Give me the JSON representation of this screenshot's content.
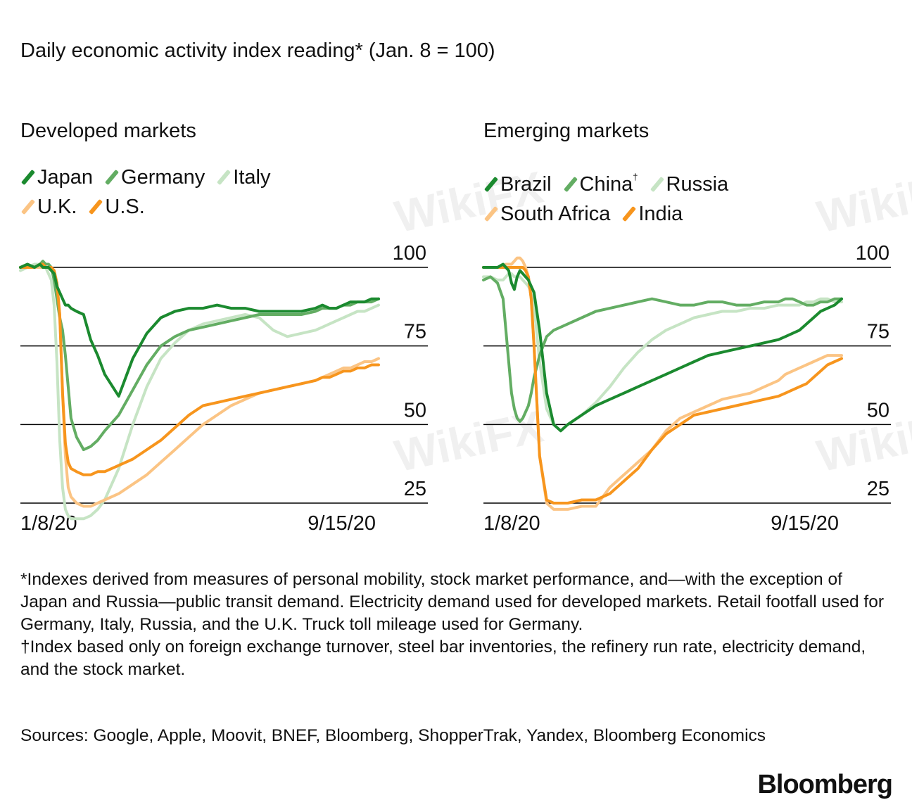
{
  "title": "Daily economic activity index reading* (Jan. 8 = 100)",
  "watermark": "WikiFX",
  "colors": {
    "japan": "#1b8a2f",
    "germany": "#63ad63",
    "italy": "#c6e4c4",
    "uk": "#fbc484",
    "us": "#f7951d",
    "gridline": "#000000"
  },
  "chart_data": [
    {
      "type": "line",
      "title": "Developed markets",
      "x_start": "1/8/20",
      "x_end": "9/15/20",
      "ylim": [
        20,
        100
      ],
      "yticks": [
        "100",
        "75",
        "50",
        "25"
      ],
      "series": [
        {
          "name": "Japan",
          "color": "#1b8a2f",
          "sup": "",
          "x": [
            0,
            5,
            10,
            14,
            16,
            18,
            20,
            22,
            24,
            26,
            28,
            30,
            32,
            34,
            36,
            40,
            45,
            50,
            55,
            60,
            70,
            80,
            90,
            100,
            110,
            120,
            130,
            140,
            150,
            160,
            170,
            180,
            190,
            200,
            210,
            215,
            220,
            225,
            230,
            235,
            240,
            245,
            250,
            255
          ],
          "y": [
            100,
            101,
            100,
            101,
            100,
            100,
            100,
            99,
            98,
            94,
            92,
            90,
            88,
            88,
            87,
            86,
            85,
            77,
            72,
            66,
            59,
            71,
            79,
            84,
            86,
            87,
            87,
            88,
            87,
            87,
            86,
            86,
            86,
            86,
            87,
            88,
            87,
            87,
            88,
            89,
            89,
            89,
            90,
            90
          ]
        },
        {
          "name": "Germany",
          "color": "#63ad63",
          "sup": "",
          "x": [
            0,
            5,
            10,
            14,
            16,
            18,
            20,
            22,
            24,
            26,
            28,
            30,
            32,
            34,
            36,
            40,
            45,
            50,
            55,
            60,
            70,
            80,
            90,
            100,
            110,
            120,
            130,
            140,
            150,
            160,
            170,
            180,
            190,
            200,
            210,
            215,
            220,
            225,
            230,
            235,
            240,
            245,
            250,
            255
          ],
          "y": [
            100,
            100,
            100,
            101,
            102,
            101,
            101,
            100,
            96,
            90,
            84,
            80,
            72,
            62,
            52,
            46,
            42,
            43,
            45,
            48,
            53,
            61,
            69,
            75,
            78,
            80,
            81,
            82,
            83,
            84,
            85,
            85,
            85,
            85,
            86,
            87,
            87,
            87,
            88,
            88,
            89,
            89,
            89,
            90
          ]
        },
        {
          "name": "Italy",
          "color": "#c6e4c4",
          "sup": "",
          "x": [
            0,
            5,
            10,
            14,
            16,
            18,
            20,
            22,
            24,
            26,
            28,
            30,
            32,
            34,
            36,
            40,
            45,
            50,
            55,
            60,
            70,
            80,
            90,
            100,
            110,
            120,
            130,
            140,
            150,
            160,
            170,
            180,
            190,
            200,
            210,
            215,
            220,
            225,
            230,
            235,
            240,
            245,
            250,
            255
          ],
          "y": [
            99,
            100,
            101,
            101,
            101,
            100,
            98,
            96,
            88,
            70,
            45,
            30,
            23,
            21,
            20,
            20,
            20,
            21,
            23,
            26,
            36,
            50,
            62,
            71,
            76,
            80,
            82,
            83,
            84,
            85,
            84,
            80,
            78,
            79,
            80,
            81,
            82,
            83,
            84,
            85,
            86,
            86,
            87,
            88
          ]
        },
        {
          "name": "U.K.",
          "color": "#fbc484",
          "sup": "",
          "x": [
            0,
            5,
            10,
            14,
            16,
            18,
            20,
            22,
            24,
            26,
            28,
            30,
            32,
            34,
            36,
            40,
            45,
            50,
            55,
            60,
            70,
            80,
            90,
            100,
            110,
            120,
            130,
            140,
            150,
            160,
            170,
            180,
            190,
            200,
            210,
            215,
            220,
            225,
            230,
            235,
            240,
            245,
            250,
            255
          ],
          "y": [
            100,
            100,
            100,
            100,
            100,
            100,
            100,
            100,
            99,
            95,
            85,
            60,
            40,
            30,
            27,
            25,
            24,
            24,
            25,
            26,
            28,
            31,
            34,
            38,
            42,
            46,
            50,
            53,
            56,
            58,
            60,
            61,
            62,
            63,
            64,
            65,
            66,
            67,
            68,
            68,
            69,
            70,
            70,
            71
          ]
        },
        {
          "name": "U.S.",
          "color": "#f7951d",
          "sup": "",
          "x": [
            0,
            5,
            10,
            14,
            16,
            18,
            20,
            22,
            24,
            26,
            28,
            30,
            32,
            34,
            36,
            40,
            45,
            50,
            55,
            60,
            70,
            80,
            90,
            100,
            110,
            120,
            130,
            140,
            150,
            160,
            170,
            180,
            190,
            200,
            210,
            215,
            220,
            225,
            230,
            235,
            240,
            245,
            250,
            255
          ],
          "y": [
            100,
            100,
            100,
            101,
            101,
            100,
            100,
            100,
            99,
            95,
            85,
            60,
            44,
            38,
            36,
            35,
            34,
            34,
            35,
            35,
            37,
            39,
            42,
            45,
            49,
            53,
            56,
            57,
            58,
            59,
            60,
            61,
            62,
            63,
            64,
            65,
            65,
            66,
            67,
            67,
            68,
            68,
            69,
            69
          ]
        }
      ]
    },
    {
      "type": "line",
      "title": "Emerging markets",
      "x_start": "1/8/20",
      "x_end": "9/15/20",
      "ylim": [
        20,
        100
      ],
      "yticks": [
        "100",
        "75",
        "50",
        "25"
      ],
      "series": [
        {
          "name": "Brazil",
          "color": "#1b8a2f",
          "sup": "",
          "x": [
            0,
            5,
            10,
            14,
            16,
            18,
            20,
            22,
            24,
            26,
            28,
            30,
            32,
            34,
            36,
            40,
            45,
            50,
            55,
            60,
            70,
            80,
            90,
            100,
            110,
            120,
            130,
            140,
            150,
            160,
            170,
            180,
            190,
            200,
            210,
            215,
            220,
            225,
            230,
            235,
            240,
            245,
            250,
            255
          ],
          "y": [
            100,
            100,
            100,
            101,
            100,
            99,
            95,
            93,
            97,
            99,
            98,
            97,
            96,
            94,
            92,
            80,
            60,
            50,
            48,
            50,
            53,
            56,
            58,
            60,
            62,
            64,
            66,
            68,
            70,
            72,
            73,
            74,
            75,
            76,
            77,
            78,
            79,
            80,
            82,
            84,
            86,
            87,
            88,
            90
          ]
        },
        {
          "name": "China",
          "color": "#63ad63",
          "sup": "†",
          "x": [
            0,
            5,
            10,
            14,
            16,
            18,
            20,
            22,
            24,
            26,
            28,
            30,
            32,
            34,
            36,
            40,
            45,
            50,
            55,
            60,
            70,
            80,
            90,
            100,
            110,
            120,
            130,
            140,
            150,
            160,
            170,
            180,
            190,
            200,
            210,
            215,
            220,
            225,
            230,
            235,
            240,
            245,
            250,
            255
          ],
          "y": [
            96,
            97,
            95,
            90,
            80,
            70,
            60,
            55,
            52,
            51,
            52,
            54,
            56,
            60,
            65,
            72,
            78,
            80,
            81,
            82,
            84,
            86,
            87,
            88,
            89,
            90,
            89,
            88,
            88,
            89,
            89,
            88,
            88,
            89,
            89,
            90,
            90,
            89,
            88,
            88,
            89,
            89,
            90,
            90
          ]
        },
        {
          "name": "Russia",
          "color": "#c6e4c4",
          "sup": "",
          "x": [
            0,
            5,
            10,
            14,
            16,
            18,
            20,
            22,
            24,
            26,
            28,
            30,
            32,
            34,
            36,
            40,
            45,
            50,
            55,
            60,
            70,
            80,
            90,
            100,
            110,
            120,
            130,
            140,
            150,
            160,
            170,
            180,
            190,
            200,
            210,
            215,
            220,
            225,
            230,
            235,
            240,
            245,
            250,
            255
          ],
          "y": [
            97,
            97,
            96,
            96,
            97,
            98,
            98,
            97,
            97,
            97,
            96,
            95,
            94,
            92,
            88,
            70,
            55,
            50,
            48,
            50,
            53,
            57,
            62,
            68,
            73,
            77,
            80,
            82,
            84,
            85,
            86,
            86,
            87,
            87,
            88,
            88,
            88,
            88,
            89,
            89,
            90,
            90,
            89,
            89
          ]
        },
        {
          "name": "South Africa",
          "color": "#fbc484",
          "sup": "",
          "x": [
            0,
            5,
            10,
            14,
            16,
            18,
            20,
            22,
            24,
            26,
            28,
            30,
            32,
            34,
            36,
            40,
            45,
            50,
            55,
            60,
            70,
            80,
            90,
            100,
            110,
            120,
            130,
            140,
            150,
            160,
            170,
            180,
            190,
            200,
            210,
            215,
            220,
            225,
            230,
            235,
            240,
            245,
            250,
            255
          ],
          "y": [
            100,
            100,
            100,
            100,
            101,
            101,
            101,
            102,
            103,
            103,
            102,
            100,
            97,
            90,
            75,
            40,
            25,
            23,
            23,
            23,
            24,
            24,
            30,
            34,
            38,
            42,
            48,
            52,
            54,
            56,
            58,
            59,
            60,
            62,
            64,
            66,
            67,
            68,
            69,
            70,
            71,
            72,
            72,
            72
          ]
        },
        {
          "name": "India",
          "color": "#f7951d",
          "sup": "",
          "x": [
            0,
            5,
            10,
            14,
            16,
            18,
            20,
            22,
            24,
            26,
            28,
            30,
            32,
            34,
            36,
            40,
            45,
            50,
            55,
            60,
            70,
            80,
            90,
            100,
            110,
            120,
            130,
            140,
            150,
            160,
            170,
            180,
            190,
            200,
            210,
            215,
            220,
            225,
            230,
            235,
            240,
            245,
            250,
            255
          ],
          "y": [
            100,
            100,
            100,
            100,
            100,
            100,
            100,
            100,
            100,
            100,
            100,
            99,
            97,
            90,
            75,
            40,
            26,
            25,
            25,
            25,
            26,
            26,
            28,
            32,
            36,
            42,
            47,
            50,
            53,
            54,
            55,
            56,
            57,
            58,
            59,
            60,
            61,
            62,
            63,
            65,
            67,
            69,
            70,
            71
          ]
        }
      ]
    }
  ],
  "notes": [
    "*Indexes derived from measures of personal mobility, stock market performance, and—with the exception of Japan and Russia—public transit demand. Electricity demand used for developed markets. Retail footfall used for Germany, Italy, Russia, and the U.K. Truck toll mileage used for Germany.",
    "†Index based only on foreign exchange turnover, steel bar inventories, the refinery run rate, electricity demand, and the stock market."
  ],
  "sources": "Sources: Google, Apple, Moovit, BNEF, Bloomberg, ShopperTrak, Yandex, Bloomberg Economics",
  "brand": "Bloomberg"
}
